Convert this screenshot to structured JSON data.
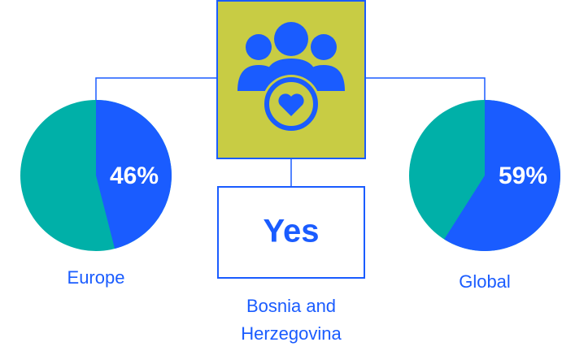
{
  "chart_data": [
    {
      "type": "pie",
      "title": "Europe",
      "values": [
        46
      ],
      "value_labels": [
        "46%"
      ],
      "color": "#1a5cff"
    },
    {
      "type": "pie",
      "title": "Global",
      "values": [
        59
      ],
      "value_labels": [
        "59%"
      ],
      "color": "#1a5cff"
    }
  ],
  "center": {
    "answer": "Yes",
    "label": "Bosnia and Herzegovina"
  }
}
